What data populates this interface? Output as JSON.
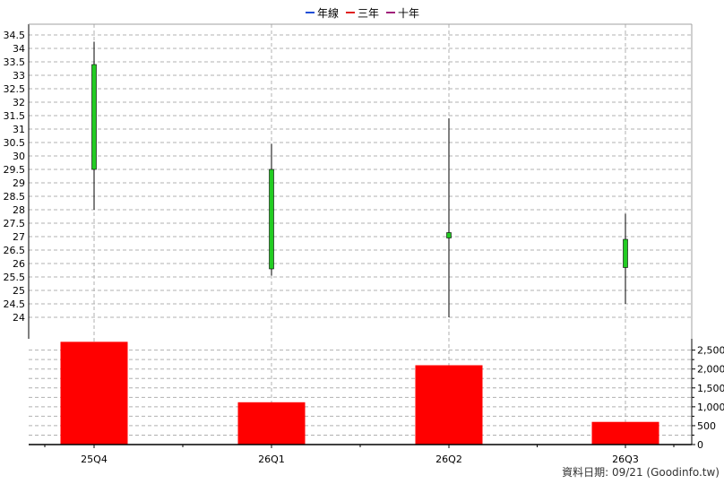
{
  "legend": [
    {
      "label": "年線",
      "color": "#1f4fd6"
    },
    {
      "label": "三年",
      "color": "#e02020"
    },
    {
      "label": "十年",
      "color": "#a0207a"
    }
  ],
  "footer": "資料日期: 09/21  (Goodinfo.tw)",
  "colors": {
    "candle_up": "#22cc22",
    "wick": "#000000",
    "volume_bar": "#ff0000",
    "grid": "#b0b0b0"
  },
  "chart_data": {
    "type": "candlestick",
    "categories": [
      "25Q4",
      "26Q1",
      "26Q2",
      "26Q3"
    ],
    "price": {
      "ylim": [
        23.2,
        34.9
      ],
      "ticks": [
        "24",
        "24.5",
        "25",
        "25.5",
        "26",
        "26.5",
        "27",
        "27.5",
        "28",
        "28.5",
        "29",
        "29.5",
        "30",
        "30.5",
        "31",
        "31.5",
        "32",
        "32.5",
        "33",
        "33.5",
        "34",
        "34.5"
      ],
      "candles": [
        {
          "open": 29.5,
          "close": 33.4,
          "high": 34.25,
          "low": 28.0
        },
        {
          "open": 25.8,
          "close": 29.5,
          "high": 30.45,
          "low": 25.55
        },
        {
          "open": 26.95,
          "close": 27.15,
          "high": 31.4,
          "low": 24.0
        },
        {
          "open": 25.85,
          "close": 26.9,
          "high": 27.85,
          "low": 24.5
        }
      ]
    },
    "volume": {
      "ylim": [
        0,
        2800
      ],
      "ticks": [
        "0",
        "500",
        "1,000",
        "1,500",
        "2,000",
        "2,500"
      ],
      "values": [
        2720,
        1120,
        2100,
        600
      ]
    },
    "grid": true,
    "legend_position": "top-center"
  }
}
